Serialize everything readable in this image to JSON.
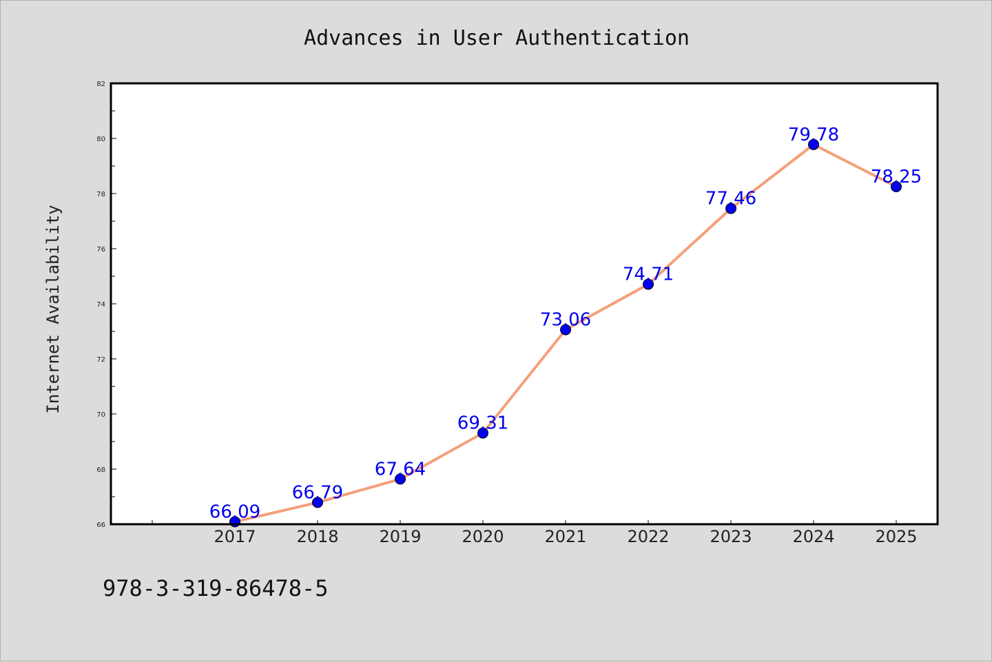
{
  "chart_data": {
    "type": "line",
    "title": "Advances in User Authentication",
    "xlabel": "",
    "ylabel": "Internet Availability",
    "categories": [
      "2017",
      "2018",
      "2019",
      "2020",
      "2021",
      "2022",
      "2023",
      "2024",
      "2025"
    ],
    "series": [
      {
        "values": [
          66.09,
          66.79,
          67.64,
          69.31,
          73.06,
          74.71,
          77.46,
          79.78,
          78.25
        ],
        "line_color": "#f4a07a",
        "marker_color": "#0000ee"
      }
    ],
    "data_labels": [
      "66.09",
      "66.79",
      "67.64",
      "69.31",
      "73.06",
      "74.71",
      "77.46",
      "79.78",
      "78.25"
    ],
    "ylim": [
      66,
      82
    ],
    "yticks": [
      "66",
      "68",
      "70",
      "72",
      "74",
      "76",
      "78",
      "80",
      "82"
    ],
    "grid": false,
    "legend": "none"
  },
  "footer": {
    "isbn": "978-3-319-86478-5"
  }
}
